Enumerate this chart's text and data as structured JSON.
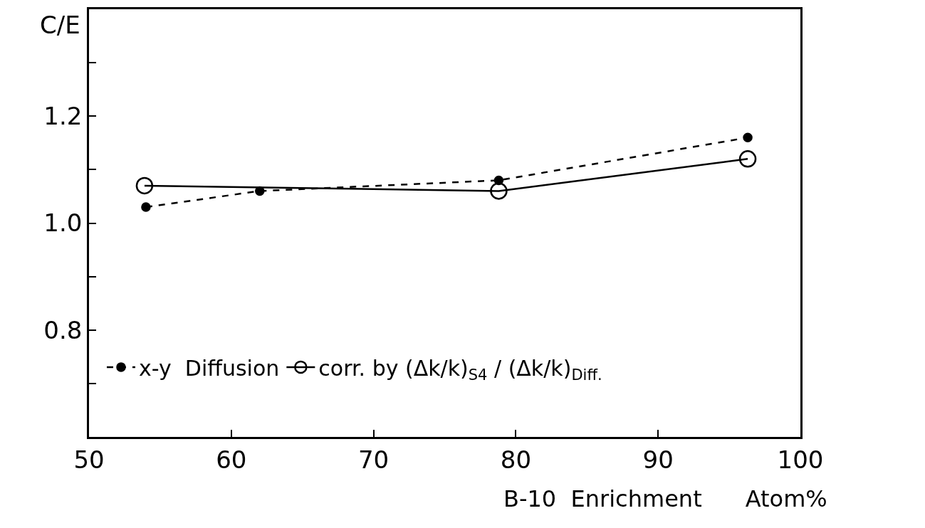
{
  "chart_data": {
    "type": "line",
    "xlabel": "B-10  Enrichment      Atom%",
    "ylabel": "C/E",
    "xlim": [
      50,
      100
    ],
    "xticks": [
      50,
      60,
      70,
      80,
      90,
      100
    ],
    "ylim": [
      0.6,
      1.4
    ],
    "yticks": [
      {
        "value": 0.7,
        "label": null
      },
      0.8,
      {
        "value": 0.9,
        "label": null
      },
      {
        "value": 1.0,
        "label": "1.0"
      },
      {
        "value": 1.1,
        "label": null
      },
      1.2,
      {
        "value": 1.3,
        "label": null
      }
    ],
    "series": [
      {
        "name": "x-y  Diffusion",
        "color": "#000000",
        "marker": "circle",
        "line_style": "dashed",
        "x": [
          54,
          62,
          78.8,
          96.3
        ],
        "values": [
          1.03,
          1.06,
          1.08,
          1.16
        ]
      },
      {
        "name": "corr. by (Δk/k)$_{S4}$ / (Δk/k)$_{Diff.}$",
        "color": "#000000",
        "marker": "circle",
        "line_style": "solid",
        "x": [
          53.9,
          78.8,
          96.3
        ],
        "values": [
          1.07,
          1.06,
          1.12
        ]
      }
    ],
    "legend": "bottom"
  }
}
